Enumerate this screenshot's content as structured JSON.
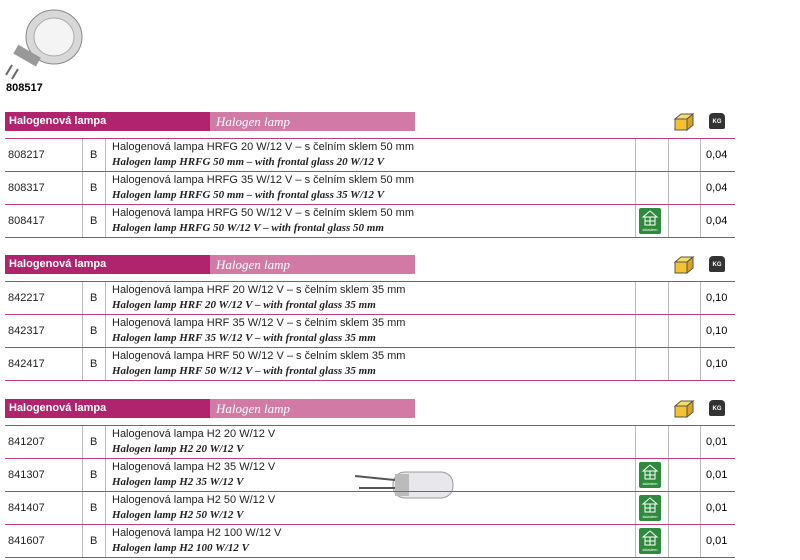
{
  "image_caption": "808517",
  "sections": [
    {
      "title_cz": "Halogenová lampa",
      "title_en": "Halogen lamp",
      "weight_icon": "KG",
      "rows": [
        {
          "code": "808217",
          "class": "B",
          "name_cz": "Halogenová lampa HRFG  20 W/12 V – s čelním sklem 50 mm",
          "name_en": "Halogen lamp HRFG 50 mm – with frontal glass 20 W/12 V",
          "weight": "0,04"
        },
        {
          "code": "808317",
          "class": "B",
          "name_cz": "Halogenová lampa HRFG 35 W/12 V – s čelním sklem 50 mm",
          "name_en": "Halogen lamp HRFG 50 mm – with frontal glass 35 W/12 V",
          "weight": "0,04"
        },
        {
          "code": "808417",
          "class": "B",
          "name_cz": "Halogenová lampa HRFG 50 W/12 V – s čelním sklem 50 mm",
          "name_en": "Halogen lamp HRFG  50 W/12 V – with frontal glass 50 mm",
          "weight": "0,04",
          "stock": "skladem"
        }
      ]
    },
    {
      "title_cz": "Halogenová lampa",
      "title_en": "Halogen lamp",
      "weight_icon": "KG",
      "rows": [
        {
          "code": "842217",
          "class": "B",
          "name_cz": "Halogenová lampa HRF 20 W/12 V – s čelním sklem 35 mm",
          "name_en": "Halogen lamp HRF 20 W/12 V – with frontal glass 35 mm",
          "weight": "0,10"
        },
        {
          "code": "842317",
          "class": "B",
          "name_cz": "Halogenová lampa HRF 35 W/12 V – s čelním sklem 35 mm",
          "name_en": "Halogen lamp HRF 35 W/12 V – with frontal glass 35 mm",
          "weight": "0,10"
        },
        {
          "code": "842417",
          "class": "B",
          "name_cz": "Halogenová lampa HRF 50 W/12 V – s čelním sklem 35 mm",
          "name_en": "Halogen lamp HRF 50 W/12 V – with frontal glass 35 mm",
          "weight": "0,10"
        }
      ]
    },
    {
      "title_cz": "Halogenová lampa",
      "title_en": "Halogen lamp",
      "weight_icon": "KG",
      "rows": [
        {
          "code": "841207",
          "class": "B",
          "name_cz": "Halogenová lampa H2 20 W/12 V",
          "name_en": "Halogen lamp H2 20 W/12 V",
          "weight": "0,01"
        },
        {
          "code": "841307",
          "class": "B",
          "name_cz": "Halogenová lampa H2 35 W/12 V",
          "name_en": "Halogen lamp H2 35 W/12 V",
          "weight": "0,01",
          "stock": "skladem"
        },
        {
          "code": "841407",
          "class": "B",
          "name_cz": "Halogenová lampa H2 50 W/12 V",
          "name_en": "Halogen lamp H2 50 W/12 V",
          "weight": "0,01",
          "stock": "skladem"
        },
        {
          "code": "841607",
          "class": "B",
          "name_cz": "Halogenová lampa H2 100 W/12 V",
          "name_en": "Halogen lamp H2 100 W/12 V",
          "weight": "0,01",
          "stock": "skladem"
        }
      ]
    }
  ]
}
